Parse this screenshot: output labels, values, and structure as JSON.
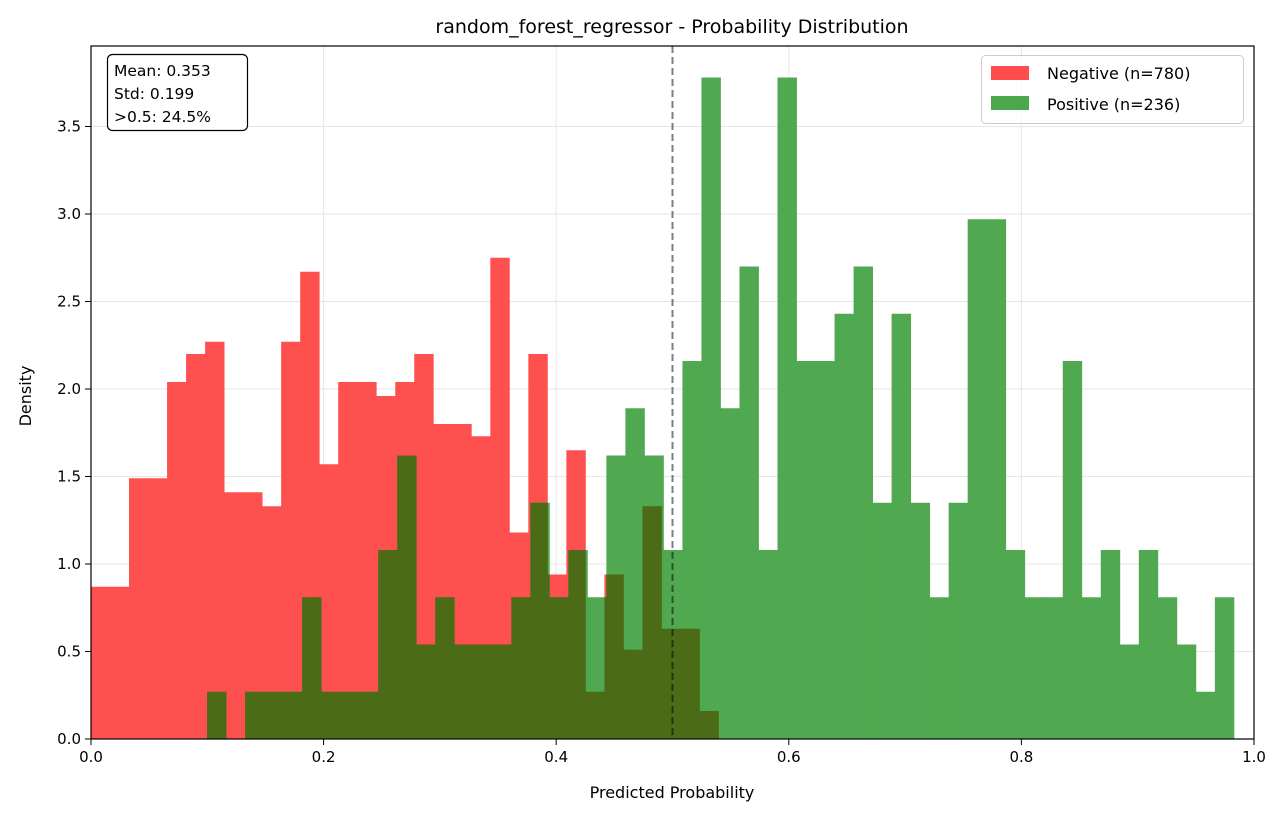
{
  "chart_data": {
    "type": "bar",
    "title": "random_forest_regressor - Probability Distribution",
    "xlabel": "Predicted Probability",
    "ylabel": "Density",
    "xlim": [
      0.0,
      1.0
    ],
    "ylim": [
      0.0,
      3.96
    ],
    "xticks": [
      0.0,
      0.2,
      0.4,
      0.6,
      0.8,
      1.0
    ],
    "xtick_labels": [
      "0.0",
      "0.2",
      "0.4",
      "0.6",
      "0.8",
      "1.0"
    ],
    "yticks": [
      0.0,
      0.5,
      1.0,
      1.5,
      2.0,
      2.5,
      3.0,
      3.5
    ],
    "ytick_labels": [
      "0.0",
      "0.5",
      "1.0",
      "1.5",
      "2.0",
      "2.5",
      "3.0",
      "3.5"
    ],
    "grid": true,
    "threshold": 0.5,
    "legend_position": "upper-right",
    "series": [
      {
        "name": "Negative (n=780)",
        "color": "#ff4d4d",
        "bin_start": 0.0,
        "bin_width": 0.01635,
        "values": [
          0.87,
          0.87,
          1.49,
          1.49,
          2.04,
          2.2,
          2.27,
          1.41,
          1.41,
          1.33,
          2.27,
          2.67,
          1.57,
          2.04,
          2.04,
          1.96,
          2.04,
          2.2,
          1.8,
          1.8,
          1.73,
          2.75,
          1.18,
          2.2,
          0.94,
          1.65,
          0.27,
          0.94,
          0.51,
          1.33,
          0.63,
          0.63,
          0.16
        ]
      },
      {
        "name": "Positive (n=236)",
        "color": "#4ca64c",
        "bin_start": 0.0998,
        "bin_width": 0.01635,
        "values": [
          0.27,
          0,
          0.27,
          0.27,
          0.27,
          0.81,
          0.27,
          0.27,
          0.27,
          1.08,
          1.62,
          0.54,
          0.81,
          0.54,
          0.54,
          0.54,
          0.81,
          1.35,
          0.81,
          1.08,
          0.81,
          1.62,
          1.89,
          1.62,
          1.08,
          2.16,
          3.78,
          1.89,
          2.7,
          1.08,
          3.78,
          2.16,
          2.16,
          2.43,
          2.7,
          1.35,
          2.43,
          1.35,
          0.81,
          1.35,
          2.97,
          2.97,
          1.08,
          0.81,
          0.81,
          2.16,
          0.81,
          1.08,
          0.54,
          1.08,
          0.81,
          0.54,
          0.27,
          0.81
        ]
      }
    ],
    "stats_box": {
      "lines": [
        "Mean: 0.353",
        "Std: 0.199",
        ">0.5: 24.5%"
      ]
    }
  }
}
